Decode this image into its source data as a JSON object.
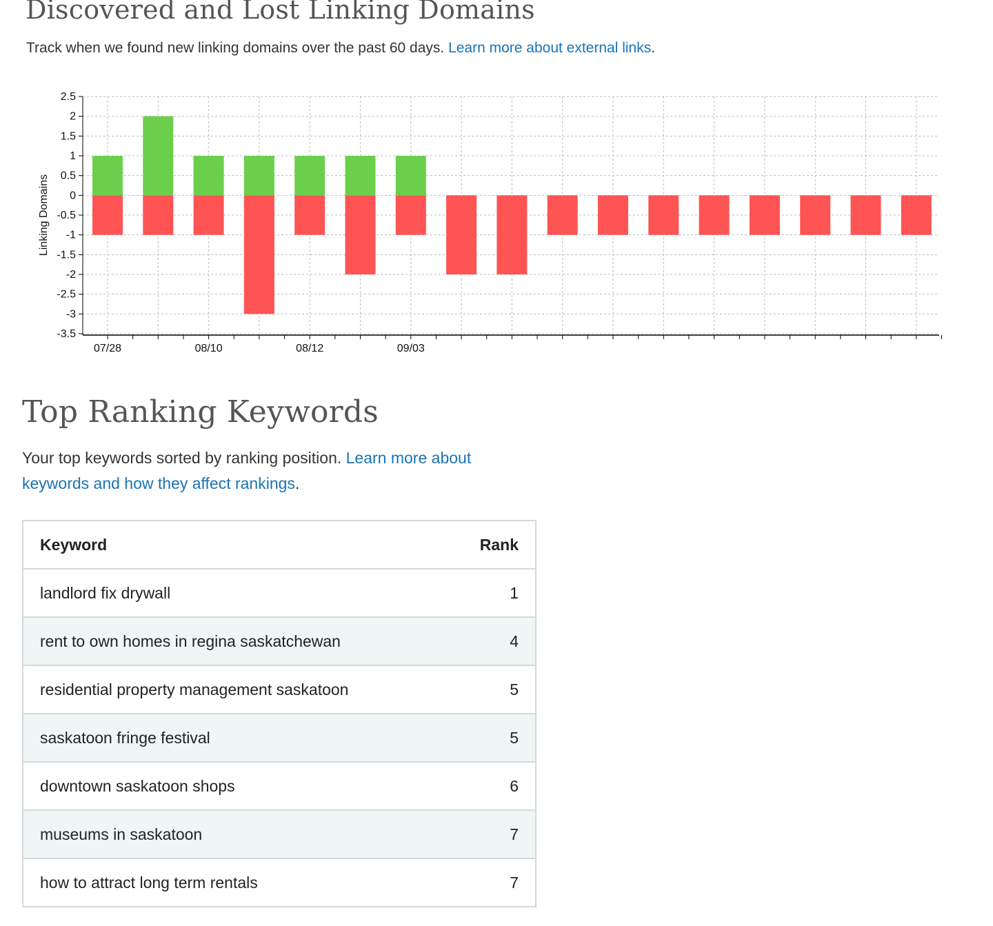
{
  "section1": {
    "title": "Discovered and Lost Linking Domains",
    "subtitle_text": "Track when we found new linking domains over the past 60 days. ",
    "subtitle_link": "Learn more about external links",
    "subtitle_end": "."
  },
  "chart_data": {
    "type": "bar",
    "ylabel": "Linking Domains",
    "ylim": [
      -3.5,
      2.5
    ],
    "yticks": [
      "2.5",
      "2",
      "1.5",
      "1",
      "0.5",
      "0",
      "-0.5",
      "-1",
      "-1.5",
      "-2",
      "-2.5",
      "-3",
      "-3.5"
    ],
    "x_tick_labels": [
      "07/28",
      "",
      "08/10",
      "",
      "08/12",
      "",
      "09/03",
      "",
      "",
      "",
      "",
      "",
      "",
      "",
      "",
      "",
      ""
    ],
    "grid": true,
    "stacked": true,
    "colors": {
      "discovered": "#6ccf4c",
      "lost": "#fe5454"
    },
    "series": [
      {
        "values": [
          1,
          2,
          1,
          1,
          1,
          1,
          1,
          0,
          0,
          0,
          0,
          0,
          0,
          0,
          0,
          0,
          0
        ]
      },
      {
        "values": [
          -1,
          -1,
          -1,
          -3,
          -1,
          -2,
          -1,
          -2,
          -2,
          -1,
          -1,
          -1,
          -1,
          -1,
          -1,
          -1,
          -1
        ]
      }
    ]
  },
  "section2": {
    "title": "Top Ranking Keywords",
    "subtitle_text": "Your top keywords sorted by ranking position. ",
    "subtitle_link": "Learn more about keywords and how they affect rankings",
    "subtitle_end": "."
  },
  "table": {
    "headers": {
      "keyword": "Keyword",
      "rank": "Rank"
    },
    "rows": [
      {
        "keyword": "landlord fix drywall",
        "rank": "1"
      },
      {
        "keyword": "rent to own homes in regina saskatchewan",
        "rank": "4"
      },
      {
        "keyword": "residential property management saskatoon",
        "rank": "5"
      },
      {
        "keyword": "saskatoon fringe festival",
        "rank": "5"
      },
      {
        "keyword": "downtown saskatoon shops",
        "rank": "6"
      },
      {
        "keyword": "museums in saskatoon",
        "rank": "7"
      },
      {
        "keyword": "how to attract long term rentals",
        "rank": "7"
      }
    ]
  }
}
